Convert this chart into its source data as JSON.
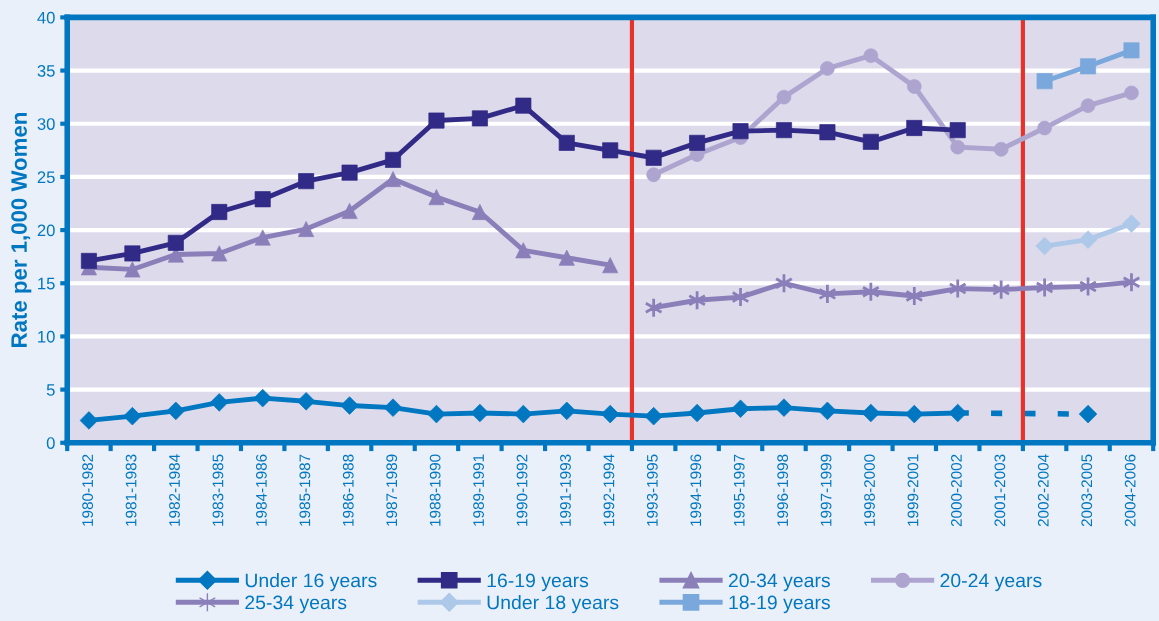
{
  "chart_data": {
    "type": "line",
    "ylabel": "Rate per 1,000 Women",
    "categories": [
      "1980-1982",
      "1981-1983",
      "1982-1984",
      "1983-1985",
      "1984-1986",
      "1985-1987",
      "1986-1988",
      "1987-1989",
      "1988-1990",
      "1989-1991",
      "1990-1992",
      "1991-1993",
      "1992-1994",
      "1993-1995",
      "1994-1996",
      "1995-1997",
      "1996-1998",
      "1997-1999",
      "1998-2000",
      "1999-2001",
      "2000-2002",
      "2001-2003",
      "2002-2004",
      "2003-2005",
      "2004-2006"
    ],
    "ylim": [
      0,
      40
    ],
    "yticks": [
      0,
      5,
      10,
      15,
      20,
      25,
      30,
      35,
      40
    ],
    "grid": "y",
    "legend": "bottom",
    "line_style": "solid",
    "series": [
      {
        "name": "Under 16 years",
        "color": "#0077c0",
        "marker": "diamond",
        "values": [
          2.1,
          2.5,
          3.0,
          3.8,
          4.2,
          3.9,
          3.5,
          3.3,
          2.7,
          2.8,
          2.7,
          3.0,
          2.7,
          2.5,
          2.8,
          3.2,
          3.3,
          3.0,
          2.8,
          2.7,
          2.8,
          null,
          null,
          2.7,
          null
        ]
      },
      {
        "name": "16-19 years",
        "color": "#312a86",
        "marker": "square",
        "values": [
          17.1,
          17.8,
          18.8,
          21.7,
          22.9,
          24.6,
          25.4,
          26.6,
          30.3,
          30.5,
          31.7,
          28.2,
          27.5,
          26.8,
          28.2,
          29.3,
          29.4,
          29.2,
          28.3,
          29.6,
          29.4,
          null,
          null,
          null,
          null
        ]
      },
      {
        "name": "20-34 years",
        "color": "#8b7fba",
        "marker": "triangle",
        "values": [
          16.5,
          16.3,
          17.7,
          17.8,
          19.3,
          20.1,
          21.8,
          24.8,
          23.1,
          21.7,
          18.1,
          17.4,
          16.7,
          null,
          null,
          null,
          null,
          null,
          null,
          null,
          null,
          null,
          null,
          null,
          null
        ]
      },
      {
        "name": "20-24 years",
        "color": "#ada5d0",
        "marker": "circle",
        "values": [
          null,
          null,
          null,
          null,
          null,
          null,
          null,
          null,
          null,
          null,
          null,
          null,
          null,
          25.2,
          27.1,
          28.7,
          32.5,
          35.2,
          36.4,
          33.5,
          27.8,
          27.6,
          29.6,
          31.7,
          32.9
        ]
      },
      {
        "name": "25-34 years",
        "color": "#8b7fba",
        "marker": "cross",
        "values": [
          null,
          null,
          null,
          null,
          null,
          null,
          null,
          null,
          null,
          null,
          null,
          null,
          null,
          12.7,
          13.4,
          13.7,
          15.0,
          14.0,
          14.2,
          13.8,
          14.5,
          14.4,
          14.6,
          14.7,
          15.1
        ]
      },
      {
        "name": "Under 18 years",
        "color": "#adc8e8",
        "marker": "diamond",
        "values": [
          null,
          null,
          null,
          null,
          null,
          null,
          null,
          null,
          null,
          null,
          null,
          null,
          null,
          null,
          null,
          null,
          null,
          null,
          null,
          null,
          null,
          null,
          18.5,
          19.1,
          20.6
        ]
      },
      {
        "name": "18-19 years",
        "color": "#7aa8dc",
        "marker": "square",
        "values": [
          null,
          null,
          null,
          null,
          null,
          null,
          null,
          null,
          null,
          null,
          null,
          null,
          null,
          null,
          null,
          null,
          null,
          null,
          null,
          null,
          null,
          null,
          34.0,
          35.4,
          36.9
        ]
      }
    ]
  }
}
